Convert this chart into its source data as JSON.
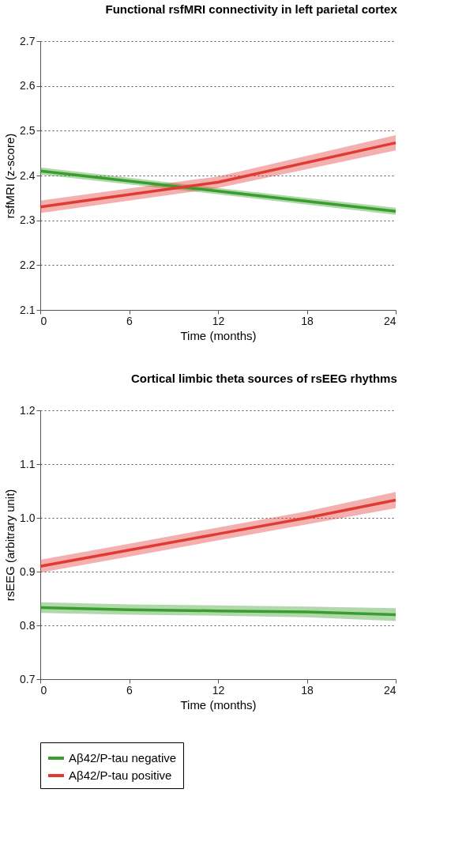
{
  "chart_data": [
    {
      "type": "line",
      "title": "Functional rsfMRI connectivity in left parietal cortex",
      "xlabel": "Time (months)",
      "ylabel": "rsfMRI (z-score)",
      "xlim": [
        0,
        24
      ],
      "xticks": [
        0,
        6,
        12,
        18,
        24
      ],
      "ylim": [
        2.1,
        2.7
      ],
      "yticks": [
        2.1,
        2.2,
        2.3,
        2.4,
        2.5,
        2.6,
        2.7
      ],
      "grid": "y",
      "line_style": "solid",
      "marker": "none",
      "legend": "bottom",
      "series": [
        {
          "name": "Aβ42/P-tau negative",
          "color": "#3a9e2e",
          "x": [
            0,
            12,
            24
          ],
          "values": [
            2.41,
            2.365,
            2.32
          ],
          "lower": [
            2.402,
            2.358,
            2.312
          ],
          "upper": [
            2.418,
            2.372,
            2.328
          ]
        },
        {
          "name": "Aβ42/P-tau positive",
          "color": "#e03a34",
          "x": [
            0,
            12,
            24
          ],
          "values": [
            2.33,
            2.385,
            2.473
          ],
          "lower": [
            2.316,
            2.372,
            2.456
          ],
          "upper": [
            2.344,
            2.398,
            2.49
          ]
        }
      ]
    },
    {
      "type": "line",
      "title": "Cortical limbic theta sources of rsEEG rhythms",
      "xlabel": "Time (months)",
      "ylabel": "rsEEG (arbitrary unit)",
      "xlim": [
        0,
        24
      ],
      "xticks": [
        0,
        6,
        12,
        18,
        24
      ],
      "ylim": [
        0.7,
        1.2
      ],
      "yticks": [
        0.7,
        0.8,
        0.9,
        {
          "value": 1,
          "label": "1.0"
        },
        1.1,
        1.2
      ],
      "grid": "y",
      "line_style": "solid",
      "marker": "none",
      "legend": "bottom",
      "series": [
        {
          "name": "Aβ42/P-tau negative",
          "color": "#3a9e2e",
          "x": [
            0,
            6,
            12,
            18,
            24
          ],
          "values": [
            0.833,
            0.829,
            0.827,
            0.825,
            0.82
          ],
          "lower": [
            0.823,
            0.82,
            0.818,
            0.815,
            0.808
          ],
          "upper": [
            0.843,
            0.839,
            0.837,
            0.835,
            0.832
          ]
        },
        {
          "name": "Aβ42/P-tau positive",
          "color": "#e03a34",
          "x": [
            0,
            6,
            12,
            18,
            24
          ],
          "values": [
            0.91,
            0.94,
            0.97,
            1.0,
            1.033
          ],
          "lower": [
            0.898,
            0.928,
            0.958,
            0.988,
            1.018
          ],
          "upper": [
            0.922,
            0.952,
            0.982,
            1.012,
            1.048
          ]
        }
      ]
    }
  ]
}
